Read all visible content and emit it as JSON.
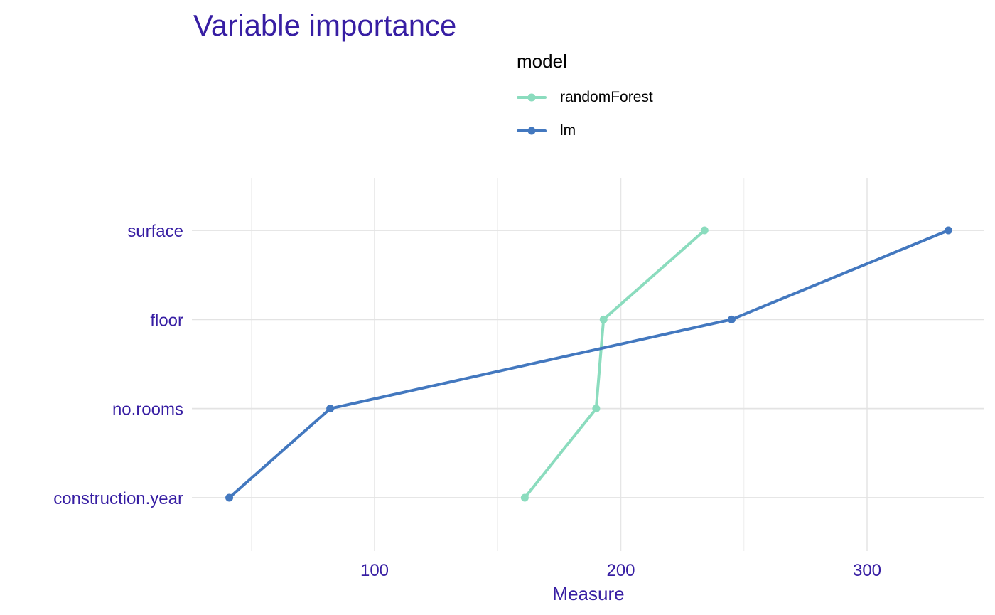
{
  "title": "Variable importance",
  "legend": {
    "title": "model",
    "items": [
      {
        "label": "randomForest",
        "color": "#8bdcbe"
      },
      {
        "label": "lm",
        "color": "#4378bf"
      }
    ]
  },
  "chart_data": {
    "type": "line",
    "title": "Variable importance",
    "xlabel": "Measure",
    "ylabel": "",
    "categories": [
      "surface",
      "floor",
      "no.rooms",
      "construction.year"
    ],
    "xlim": [
      27,
      344
    ],
    "xticks": [
      100,
      200,
      300
    ],
    "grid": true,
    "legend_position": "top",
    "series": [
      {
        "name": "randomForest",
        "color": "#8bdcbe",
        "values": [
          234,
          193,
          190,
          161
        ]
      },
      {
        "name": "lm",
        "color": "#4378bf",
        "values": [
          333,
          245,
          82,
          41
        ]
      }
    ]
  }
}
